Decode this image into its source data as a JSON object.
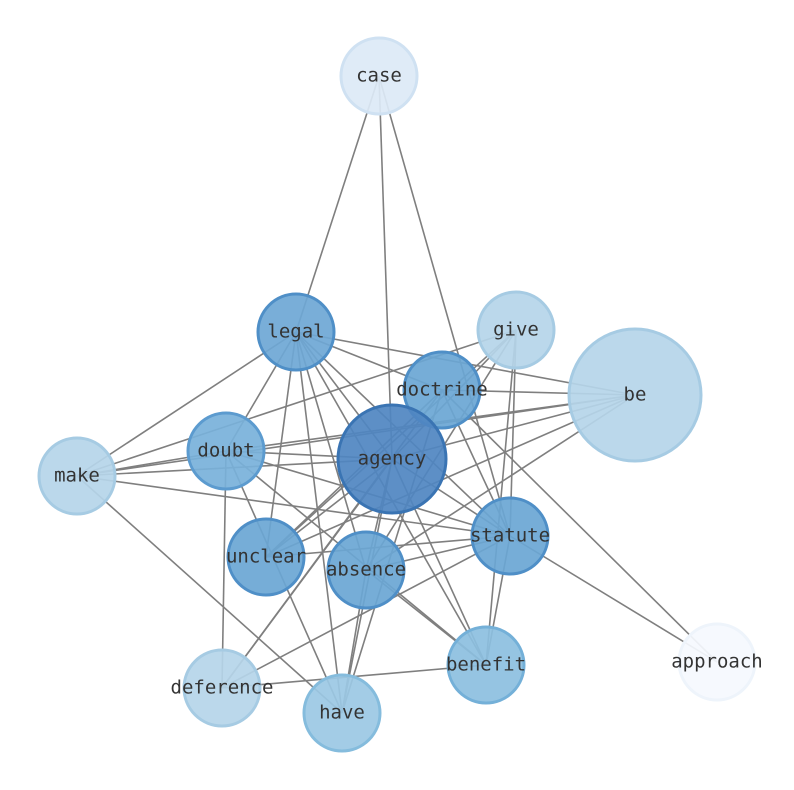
{
  "nodes": [
    {
      "label": "case"
    },
    {
      "label": "legal"
    },
    {
      "label": "give"
    },
    {
      "label": "doctrine"
    },
    {
      "label": "be"
    },
    {
      "label": "doubt"
    },
    {
      "label": "agency"
    },
    {
      "label": "make"
    },
    {
      "label": "statute"
    },
    {
      "label": "unclear"
    },
    {
      "label": "absence"
    },
    {
      "label": "benefit"
    },
    {
      "label": "approach"
    },
    {
      "label": "deference"
    },
    {
      "label": "have"
    }
  ]
}
